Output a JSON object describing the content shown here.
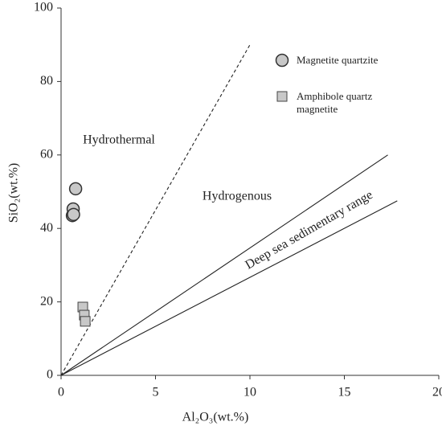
{
  "chart_data": {
    "type": "scatter",
    "xlabel": "Al₂O₃(wt.%)",
    "ylabel": "SiO₂(wt.%)",
    "xlim": [
      0,
      20
    ],
    "ylim": [
      0,
      100
    ],
    "xticks": [
      0,
      5,
      10,
      15,
      20
    ],
    "yticks": [
      0,
      20,
      40,
      60,
      80,
      100
    ],
    "series": [
      {
        "name": "Magnetite quartzite",
        "marker": "circle",
        "color": "#c8c8c8",
        "x": [
          0.77,
          0.64,
          0.6,
          0.66
        ],
        "y": [
          50.8,
          45.3,
          43.5,
          43.8
        ]
      },
      {
        "name": "Amphibole quartz magnetite",
        "marker": "square",
        "color": "#c8c8c8",
        "x": [
          1.15,
          1.23,
          1.28
        ],
        "y": [
          18.6,
          16.4,
          14.7
        ]
      }
    ],
    "reference_lines": [
      {
        "style": "dashed",
        "x": [
          0,
          10
        ],
        "y": [
          0,
          90
        ]
      },
      {
        "style": "solid",
        "x": [
          0,
          17.3
        ],
        "y": [
          0,
          60
        ]
      },
      {
        "style": "solid",
        "x": [
          0,
          17.8
        ],
        "y": [
          0,
          47.5
        ]
      }
    ],
    "annotations": [
      "Hydrothermal",
      "Hydrogenous",
      "Deep sea sedimentary range"
    ],
    "legend": "upper right"
  }
}
